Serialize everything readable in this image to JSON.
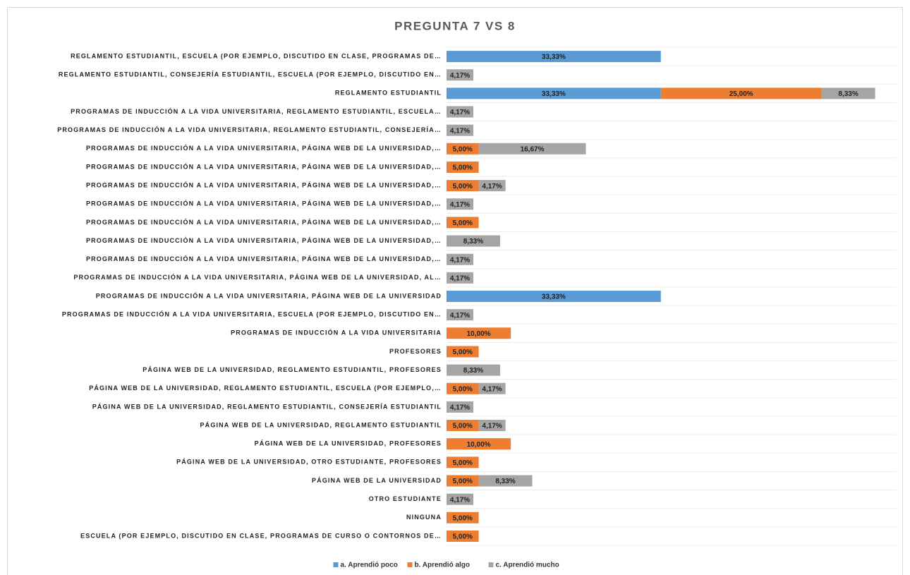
{
  "chart_data": {
    "type": "stacked-bar-horizontal",
    "title": "PREGUNTA 7 VS 8",
    "categories": [
      "REGLAMENTO ESTUDIANTIL, ESCUELA (POR EJEMPLO, DISCUTIDO EN CLASE, PROGRAMAS DE…",
      "REGLAMENTO ESTUDIANTIL, CONSEJERÍA ESTUDIANTIL, ESCUELA (POR EJEMPLO, DISCUTIDO EN…",
      "REGLAMENTO ESTUDIANTIL",
      "PROGRAMAS DE INDUCCIÓN A LA VIDA UNIVERSITARIA, REGLAMENTO ESTUDIANTIL, ESCUELA…",
      "PROGRAMAS DE INDUCCIÓN A LA VIDA UNIVERSITARIA, REGLAMENTO ESTUDIANTIL, CONSEJERÍA…",
      "PROGRAMAS DE INDUCCIÓN A LA VIDA UNIVERSITARIA, PÁGINA WEB DE LA UNIVERSIDAD,…",
      "PROGRAMAS DE INDUCCIÓN A LA VIDA UNIVERSITARIA, PÁGINA WEB DE LA UNIVERSIDAD,…",
      "PROGRAMAS DE INDUCCIÓN A LA VIDA UNIVERSITARIA, PÁGINA WEB DE LA UNIVERSIDAD,…",
      "PROGRAMAS DE INDUCCIÓN A LA VIDA UNIVERSITARIA, PÁGINA WEB DE LA UNIVERSIDAD,…",
      "PROGRAMAS DE INDUCCIÓN A LA VIDA UNIVERSITARIA, PÁGINA WEB DE LA UNIVERSIDAD,…",
      "PROGRAMAS DE INDUCCIÓN A LA VIDA UNIVERSITARIA, PÁGINA WEB DE LA UNIVERSIDAD,…",
      "PROGRAMAS DE INDUCCIÓN A LA VIDA UNIVERSITARIA, PÁGINA WEB DE LA UNIVERSIDAD,…",
      "PROGRAMAS DE INDUCCIÓN A LA VIDA UNIVERSITARIA, PÁGINA WEB DE LA UNIVERSIDAD, AL…",
      "PROGRAMAS DE INDUCCIÓN A LA VIDA UNIVERSITARIA, PÁGINA WEB DE LA UNIVERSIDAD",
      "PROGRAMAS DE INDUCCIÓN A LA VIDA UNIVERSITARIA, ESCUELA (POR EJEMPLO, DISCUTIDO EN…",
      "PROGRAMAS DE INDUCCIÓN A LA VIDA UNIVERSITARIA",
      "PROFESORES",
      "PÁGINA WEB DE LA UNIVERSIDAD, REGLAMENTO ESTUDIANTIL, PROFESORES",
      "PÁGINA WEB DE LA UNIVERSIDAD, REGLAMENTO ESTUDIANTIL, ESCUELA (POR EJEMPLO,…",
      "PÁGINA WEB DE LA UNIVERSIDAD, REGLAMENTO ESTUDIANTIL, CONSEJERÍA ESTUDIANTIL",
      "PÁGINA WEB DE LA UNIVERSIDAD, REGLAMENTO ESTUDIANTIL",
      "PÁGINA WEB DE LA UNIVERSIDAD, PROFESORES",
      "PÁGINA WEB DE LA UNIVERSIDAD, OTRO ESTUDIANTE, PROFESORES",
      "PÁGINA WEB DE LA UNIVERSIDAD",
      "OTRO ESTUDIANTE",
      "NINGUNA",
      "ESCUELA (POR EJEMPLO, DISCUTIDO EN CLASE, PROGRAMAS DE CURSO O CONTORNOS DE…"
    ],
    "series": [
      {
        "name": "a. Aprendió poco",
        "color": "#5b9bd5",
        "values": [
          33.33,
          null,
          33.33,
          null,
          null,
          null,
          null,
          null,
          null,
          null,
          null,
          null,
          null,
          33.33,
          null,
          null,
          null,
          null,
          null,
          null,
          null,
          null,
          null,
          null,
          null,
          null,
          null
        ],
        "value_labels": [
          "33,33%",
          null,
          "33,33%",
          null,
          null,
          null,
          null,
          null,
          null,
          null,
          null,
          null,
          null,
          "33,33%",
          null,
          null,
          null,
          null,
          null,
          null,
          null,
          null,
          null,
          null,
          null,
          null,
          null
        ]
      },
      {
        "name": "b. Aprendió algo",
        "color": "#ed7d31",
        "values": [
          null,
          null,
          25,
          null,
          null,
          5,
          5,
          5,
          null,
          5,
          null,
          null,
          null,
          null,
          null,
          10,
          5,
          null,
          5,
          null,
          5,
          10,
          5,
          5,
          null,
          5,
          5
        ],
        "value_labels": [
          null,
          null,
          "25,00%",
          null,
          null,
          "5,00%",
          "5,00%",
          "5,00%",
          null,
          "5,00%",
          null,
          null,
          null,
          null,
          null,
          "10,00%",
          "5,00%",
          null,
          "5,00%",
          null,
          "5,00%",
          "10,00%",
          "5,00%",
          "5,00%",
          null,
          "5,00%",
          "5,00%"
        ]
      },
      {
        "name": "c. Aprendió mucho",
        "color": "#a5a5a5",
        "values": [
          null,
          4.17,
          8.33,
          4.17,
          4.17,
          16.67,
          null,
          4.17,
          4.17,
          null,
          8.33,
          4.17,
          4.17,
          null,
          4.17,
          null,
          null,
          8.33,
          4.17,
          4.17,
          4.17,
          null,
          null,
          8.33,
          4.17,
          null,
          null
        ],
        "value_labels": [
          null,
          "4,17%",
          "8,33%",
          "4,17%",
          "4,17%",
          "16,67%",
          null,
          "4,17%",
          "4,17%",
          null,
          "8,33%",
          "4,17%",
          "4,17%",
          null,
          "4,17%",
          null,
          null,
          "8,33%",
          "4,17%",
          "4,17%",
          "4,17%",
          null,
          null,
          "8,33%",
          "4,17%",
          null,
          null
        ]
      }
    ],
    "xlim": [
      0,
      70
    ],
    "legend": "bottom"
  }
}
